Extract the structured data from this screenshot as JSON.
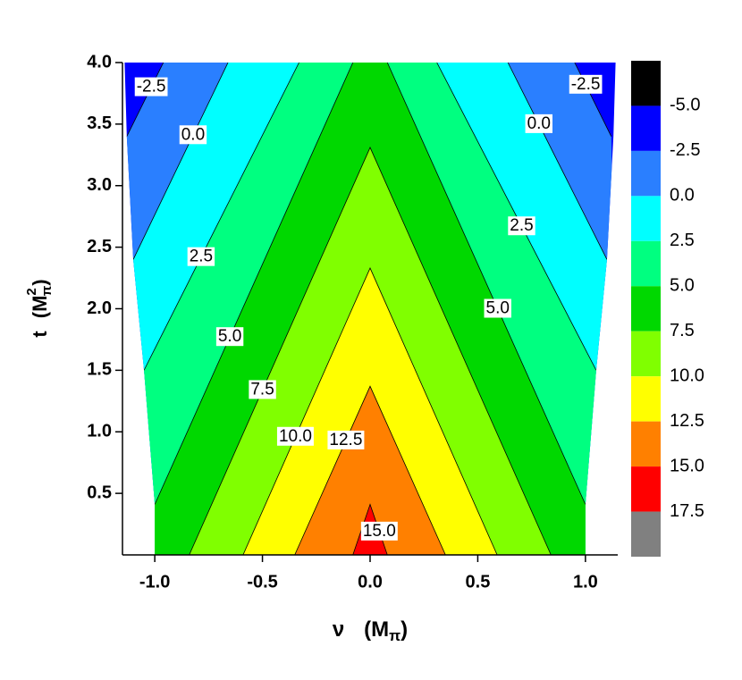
{
  "chart_data": {
    "type": "contour",
    "xlabel": {
      "var": "ν",
      "unit": "(M",
      "sub": "π",
      "close": ")"
    },
    "ylabel": {
      "var": "t",
      "unit": "(M",
      "sup": "2",
      "sub": "π",
      "close": ")"
    },
    "xlim": [
      -1.15,
      1.15
    ],
    "ylim": [
      0,
      4.0
    ],
    "xticks": [
      {
        "value": -1,
        "label": "-1.0"
      },
      -0.5,
      {
        "value": 0,
        "label": "0.0"
      },
      0.5,
      {
        "value": 1,
        "label": "1.0"
      }
    ],
    "yticks": [
      0.5,
      {
        "value": 1,
        "label": "1.0"
      },
      1.5,
      {
        "value": 2,
        "label": "2.0"
      },
      2.5,
      {
        "value": 3,
        "label": "3.0"
      },
      3.5,
      {
        "value": 4,
        "label": "4.0"
      }
    ],
    "levels": [
      {
        "value": -5,
        "label": "-5.0"
      },
      -2.5,
      {
        "value": 0,
        "label": "0.0"
      },
      2.5,
      {
        "value": 5,
        "label": "5.0"
      },
      7.5,
      {
        "value": 10,
        "label": "10.0"
      },
      12.5,
      {
        "value": 15,
        "label": "15.0"
      },
      17.5
    ],
    "colors": [
      "#000000",
      "#0000ff",
      "#2a7fff",
      "#00ffff",
      "#00ff80",
      "#00d800",
      "#80ff00",
      "#ffff00",
      "#ff8000",
      "#ff0000",
      "#808080"
    ],
    "domain": {
      "x": [
        -1.0,
        -1.0,
        -1.05,
        -1.1,
        -1.13,
        -1.14,
        1.14,
        1.13,
        1.1,
        1.05,
        1.0,
        1.0
      ],
      "y": [
        0,
        0.41,
        1.5,
        2.4,
        3.4,
        4.0,
        4.0,
        3.4,
        2.4,
        1.5,
        0.41,
        0
      ]
    },
    "contours": [
      {
        "level": -2.5,
        "label": "-2.5",
        "x": [
          -1.13,
          -0.96,
          null,
          0.95,
          1.12
        ],
        "y": [
          3.4,
          4.0,
          null,
          4.0,
          3.4
        ]
      },
      {
        "level": 0,
        "label": "0.0",
        "x": [
          -1.1,
          -0.66,
          null,
          0.64,
          1.1
        ],
        "y": [
          2.4,
          4.0,
          null,
          4.0,
          2.4
        ]
      },
      {
        "level": 2.5,
        "label": "2.5",
        "x": [
          -1.05,
          -0.33,
          null,
          0.31,
          1.05
        ],
        "y": [
          1.5,
          4.0,
          null,
          4.0,
          1.5
        ]
      },
      {
        "level": 5,
        "label": "5.0",
        "x": [
          -1.0,
          -0.08,
          null,
          0.08,
          1.0
        ],
        "y": [
          0.41,
          4.0,
          null,
          4.0,
          0.41
        ]
      },
      {
        "level": 7.5,
        "label": "7.5",
        "x": [
          -0.84,
          0,
          0.84
        ],
        "y": [
          0,
          3.31,
          0
        ]
      },
      {
        "level": 10,
        "label": "10.0",
        "x": [
          -0.59,
          0,
          0.59
        ],
        "y": [
          0,
          2.33,
          0
        ]
      },
      {
        "level": 12.5,
        "label": "12.5",
        "x": [
          -0.35,
          0,
          0.35
        ],
        "y": [
          0,
          1.37,
          0
        ]
      },
      {
        "level": 15,
        "label": "15.0",
        "x": [
          -0.08,
          0,
          0.08
        ],
        "y": [
          0,
          0.41,
          0
        ]
      }
    ]
  }
}
